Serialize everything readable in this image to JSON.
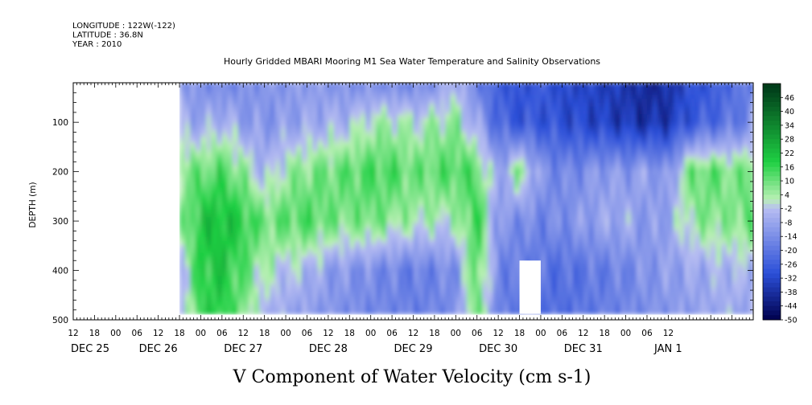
{
  "chart_data": {
    "type": "heatmap",
    "meta_lines": [
      "LONGITUDE : 122W(-122)",
      "LATITUDE : 36.8N",
      "YEAR : 2010"
    ],
    "title": "Hourly Gridded MBARI Mooring M1 Sea Water Temperature and Salinity Observations",
    "xlabel": "V Component of Water Velocity (cm s-1)",
    "ylabel": "DEPTH (m)",
    "y_ticks": [
      "100",
      "200",
      "300",
      "400",
      "500"
    ],
    "hour_ticks": [
      "12",
      "18",
      "00",
      "06",
      "12",
      "18",
      "00",
      "06",
      "12",
      "18",
      "00",
      "06",
      "12",
      "18",
      "00",
      "06",
      "12",
      "18",
      "00",
      "06",
      "12",
      "18",
      "00",
      "06",
      "12",
      "18",
      "00",
      "06",
      "12"
    ],
    "day_labels": [
      "DEC 25",
      "DEC 26",
      "DEC 27",
      "DEC 28",
      "DEC 29",
      "DEC 30",
      "DEC 31",
      "JAN 1"
    ],
    "colorbar_labels": [
      "46",
      "40",
      "34",
      "28",
      "22",
      "16",
      "10",
      "4",
      "-2",
      "-8",
      "-14",
      "-20",
      "-26",
      "-32",
      "-38",
      "-44",
      "-50"
    ],
    "colorbar_range": [
      -50,
      52
    ],
    "colors": {
      "neg_deep": "#00004d",
      "neg_mid": "#2b4fd8",
      "neg_light": "#b7bdf2",
      "pos_light": "#b9f0b4",
      "pos_mid": "#1fd043",
      "pos_deep": "#003d1a"
    },
    "x_range_hours": [
      -12,
      180
    ],
    "y_range_m": [
      20,
      500
    ],
    "data_start_hour": 18,
    "data_end_hour": 180,
    "data_depth_range": [
      20,
      488
    ],
    "grid_hours": [
      18,
      24,
      30,
      36,
      42,
      48,
      54,
      60,
      66,
      72,
      78,
      84,
      90,
      96,
      102,
      108,
      114,
      120,
      126,
      132,
      138,
      144,
      150,
      156,
      162,
      168,
      174,
      180
    ],
    "grid_depths": [
      20,
      100,
      200,
      300,
      400,
      488
    ],
    "grid_values": [
      [
        -10,
        -14,
        -16,
        -14,
        -12,
        -12,
        -10,
        -12,
        -14,
        -14,
        -16,
        -16,
        -14,
        -4,
        -18,
        -26,
        -30,
        -26,
        -32,
        -32,
        -34,
        -36,
        -40,
        -38,
        -30,
        -28,
        -22,
        -18
      ],
      [
        -6,
        -8,
        -4,
        -10,
        -12,
        -10,
        -8,
        -6,
        -4,
        2,
        4,
        0,
        4,
        6,
        -8,
        -24,
        -28,
        -28,
        -30,
        -32,
        -34,
        -36,
        -38,
        -36,
        -28,
        -24,
        -20,
        -14
      ],
      [
        8,
        10,
        14,
        6,
        -6,
        4,
        8,
        10,
        12,
        14,
        14,
        10,
        12,
        14,
        12,
        -10,
        8,
        -12,
        -16,
        -14,
        -10,
        -12,
        -8,
        -14,
        10,
        12,
        8,
        10
      ],
      [
        4,
        20,
        22,
        18,
        10,
        12,
        14,
        10,
        8,
        10,
        6,
        4,
        2,
        2,
        18,
        -12,
        -14,
        -16,
        -14,
        -10,
        -8,
        -6,
        -12,
        -8,
        4,
        8,
        6,
        14
      ],
      [
        -6,
        18,
        20,
        12,
        2,
        -2,
        -4,
        -10,
        -12,
        -14,
        -16,
        -18,
        -16,
        -14,
        14,
        -16,
        -18,
        -20,
        -22,
        -20,
        -18,
        -16,
        -12,
        -10,
        -8,
        -6,
        -4,
        -6
      ],
      [
        -8,
        16,
        18,
        8,
        -4,
        -8,
        -10,
        -12,
        -14,
        -16,
        -16,
        -18,
        -16,
        -14,
        12,
        -18,
        -20,
        -22,
        -22,
        -20,
        -18,
        -16,
        -14,
        -12,
        -10,
        -8,
        -6,
        -10
      ]
    ],
    "masked_region": {
      "hour_start": 114,
      "hour_end": 120,
      "depth_start": 380,
      "depth_end": 488
    }
  }
}
